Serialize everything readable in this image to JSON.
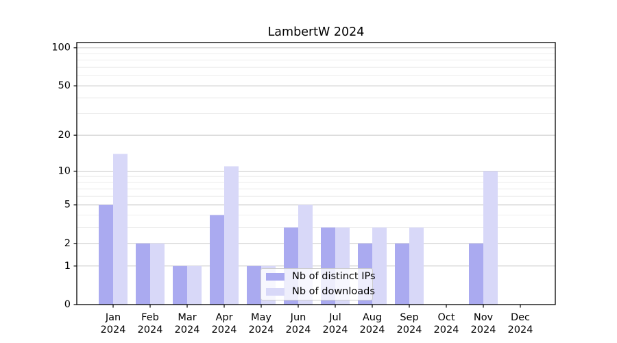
{
  "chart_data": {
    "type": "bar",
    "title": "LambertW 2024",
    "categories": [
      "Jan",
      "Feb",
      "Mar",
      "Apr",
      "May",
      "Jun",
      "Jul",
      "Aug",
      "Sep",
      "Oct",
      "Nov",
      "Dec"
    ],
    "year_label": "2024",
    "series": [
      {
        "name": "Nb of distinct IPs",
        "color": "#aaaaf0",
        "values": [
          5,
          2,
          1,
          4,
          1,
          3,
          3,
          2,
          2,
          0,
          2,
          0
        ]
      },
      {
        "name": "Nb of downloads",
        "color": "#d8d8f8",
        "values": [
          14,
          2,
          1,
          11,
          1,
          5,
          3,
          3,
          3,
          0,
          10,
          0
        ]
      }
    ],
    "y_axis": {
      "scale": "log1p",
      "ticks": [
        100,
        50,
        20,
        10,
        5,
        2,
        1,
        0
      ],
      "minor_ticks": [
        3,
        4,
        6,
        7,
        8,
        9,
        30,
        40,
        60,
        70,
        80,
        90
      ],
      "ylim": [
        0,
        110
      ]
    },
    "xlabel": "",
    "ylabel": "",
    "grid": true,
    "legend_position": "lower center (inside plot)",
    "colors": {
      "spine": "#000000",
      "grid_major": "#c6c6c6",
      "grid_minor": "#e7e7e7",
      "background": "#ffffff"
    }
  }
}
